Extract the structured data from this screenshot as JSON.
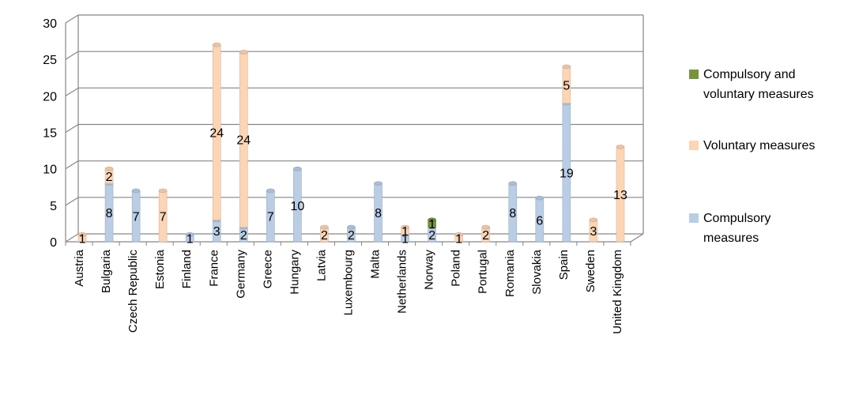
{
  "chart_data": {
    "type": "bar",
    "stacked": true,
    "three_d": true,
    "categories": [
      "Austria",
      "Bulgaria",
      "Czech Republic",
      "Estonia",
      "Finland",
      "France",
      "Germany",
      "Greece",
      "Hungary",
      "Latvia",
      "Luxembourg",
      "Malta",
      "Netherlands",
      "Norway",
      "Poland",
      "Portugal",
      "Romania",
      "Slovakia",
      "Spain",
      "Sweden",
      "United Kingdom"
    ],
    "series": [
      {
        "name": "Compulsory measures",
        "color": "#b9cde5",
        "values": [
          0,
          8,
          7,
          0,
          1,
          3,
          2,
          7,
          10,
          0,
          2,
          8,
          1,
          2,
          0,
          0,
          8,
          6,
          19,
          0,
          0
        ]
      },
      {
        "name": "Voluntary measures",
        "color": "#fcd5b5",
        "values": [
          1,
          2,
          0,
          7,
          0,
          24,
          24,
          0,
          0,
          2,
          0,
          0,
          1,
          0,
          1,
          2,
          0,
          0,
          5,
          3,
          13
        ]
      },
      {
        "name": "Compulsory and voluntary measures",
        "color": "#77933c",
        "values": [
          0,
          0,
          0,
          0,
          0,
          0,
          0,
          0,
          0,
          0,
          0,
          0,
          0,
          1,
          0,
          0,
          0,
          0,
          0,
          0,
          0
        ]
      }
    ],
    "yticks": [
      "0",
      "5",
      "10",
      "15",
      "20",
      "25",
      "30"
    ],
    "ylim": [
      0,
      30
    ],
    "grid": true,
    "legend_position": "right"
  },
  "legend": [
    {
      "label": "Compulsory and voluntary measures",
      "color": "#77933c"
    },
    {
      "label": "Voluntary measures",
      "color": "#fcd5b5"
    },
    {
      "label": "Compulsory measures",
      "color": "#b9cde5"
    }
  ]
}
